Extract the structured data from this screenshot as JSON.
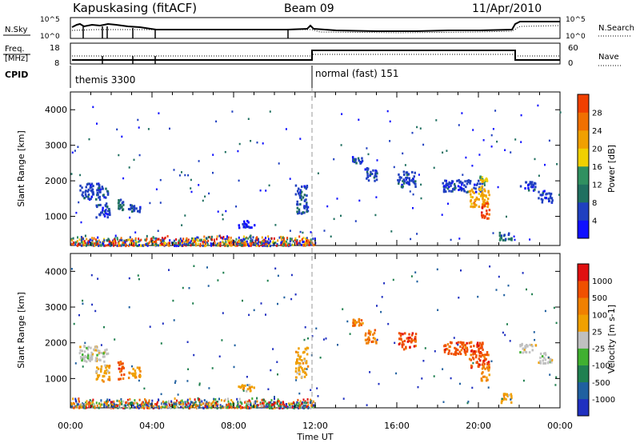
{
  "header": {
    "station": "Kapuskasing (fitACF)",
    "beam": "Beam 09",
    "date": "11/Apr/2010"
  },
  "status_panel": {
    "nsky_label": "N.Sky",
    "nsky_ticks": [
      "10^5",
      "10^0"
    ],
    "nsearch_label": "N.Search",
    "nsearch_ticks": [
      "10^5",
      "10^0"
    ],
    "freq_label_line1": "Freq.",
    "freq_label_line2": "[MHz]",
    "freq_ticks": [
      "18",
      "8"
    ],
    "nave_label": "Nave",
    "nave_ticks": [
      "60",
      "0"
    ],
    "cpid_label": "CPID",
    "cpid_segments": [
      {
        "name": "themis 3300",
        "start_hour": 0
      },
      {
        "name": "normal (fast) 151",
        "start_hour": 12
      }
    ]
  },
  "colors": {
    "power_scale": [
      "#1010ff",
      "#2040c0",
      "#207060",
      "#309060",
      "#f0d000",
      "#f0a000",
      "#f07000",
      "#f04000",
      "#e01010"
    ],
    "velocity_scale": [
      "#2030c0",
      "#2060a0",
      "#208050",
      "#40b030",
      "#c0c0c0",
      "#f0a000",
      "#f08000",
      "#f05000",
      "#e01010"
    ],
    "axis": "#000000",
    "midline": "#999999"
  },
  "chart_data": [
    {
      "type": "heatmap",
      "name": "Power",
      "ylabel": "Slant Range [km]",
      "ylim": [
        180,
        4500
      ],
      "yticks": [
        1000,
        2000,
        3000,
        4000
      ],
      "colorbar_label": "Power [dB]",
      "colorbar_ticks": [
        "4",
        "8",
        "12",
        "16",
        "20",
        "24",
        "28"
      ],
      "blobs": [
        {
          "x": [
            0.4,
            1.8
          ],
          "y": [
            1500,
            1950
          ],
          "level": 1
        },
        {
          "x": [
            1.2,
            1.9
          ],
          "y": [
            1000,
            1400
          ],
          "level": 1
        },
        {
          "x": [
            2.3,
            2.6
          ],
          "y": [
            1150,
            1500
          ],
          "level": 2
        },
        {
          "x": [
            2.8,
            3.4
          ],
          "y": [
            1150,
            1350
          ],
          "level": 1
        },
        {
          "x": [
            8.2,
            9.0
          ],
          "y": [
            700,
            900
          ],
          "level": 0
        },
        {
          "x": [
            11.0,
            11.6
          ],
          "y": [
            1100,
            1900
          ],
          "level": 1
        },
        {
          "x": [
            13.8,
            14.3
          ],
          "y": [
            2500,
            2700
          ],
          "level": 1
        },
        {
          "x": [
            14.4,
            15.0
          ],
          "y": [
            2000,
            2400
          ],
          "level": 1
        },
        {
          "x": [
            16.0,
            16.9
          ],
          "y": [
            1850,
            2300
          ],
          "level": 1
        },
        {
          "x": [
            18.2,
            20.2
          ],
          "y": [
            1700,
            2050
          ],
          "level": 1
        },
        {
          "x": [
            19.5,
            20.5
          ],
          "y": [
            1300,
            1800
          ],
          "level": 5
        },
        {
          "x": [
            20.0,
            20.4
          ],
          "y": [
            1700,
            2200
          ],
          "level": 4
        },
        {
          "x": [
            20.1,
            20.5
          ],
          "y": [
            950,
            1400
          ],
          "level": 7
        },
        {
          "x": [
            21.0,
            21.6
          ],
          "y": [
            350,
            600
          ],
          "level": 2
        },
        {
          "x": [
            22.0,
            22.8
          ],
          "y": [
            1750,
            2000
          ],
          "level": 1
        },
        {
          "x": [
            22.9,
            23.6
          ],
          "y": [
            1400,
            1750
          ],
          "level": 1
        }
      ],
      "near_range_band": {
        "x": [
          0.0,
          12.0
        ],
        "y": [
          200,
          500
        ]
      }
    },
    {
      "type": "heatmap",
      "name": "Velocity",
      "ylabel": "Slant Range [km]",
      "ylim": [
        180,
        4500
      ],
      "yticks": [
        1000,
        2000,
        3000,
        4000
      ],
      "xlabel": "Time UT",
      "xticks": [
        "00:00",
        "04:00",
        "08:00",
        "12:00",
        "16:00",
        "20:00",
        "00:00"
      ],
      "xlim_hours": [
        0,
        24
      ],
      "colorbar_label": "Velocity [m s-1]",
      "colorbar_ticks": [
        "1000",
        "500",
        "100",
        "25",
        "-25",
        "-100",
        "-500",
        "-1000"
      ],
      "blobs": [
        {
          "x": [
            0.4,
            1.8
          ],
          "y": [
            1500,
            1950
          ],
          "level": 4
        },
        {
          "x": [
            1.2,
            1.9
          ],
          "y": [
            950,
            1400
          ],
          "level": 5
        },
        {
          "x": [
            2.3,
            2.6
          ],
          "y": [
            1000,
            1500
          ],
          "level": 7
        },
        {
          "x": [
            2.8,
            3.4
          ],
          "y": [
            1050,
            1350
          ],
          "level": 5
        },
        {
          "x": [
            8.2,
            9.0
          ],
          "y": [
            650,
            850
          ],
          "level": 5
        },
        {
          "x": [
            11.0,
            11.6
          ],
          "y": [
            1050,
            1900
          ],
          "level": 5
        },
        {
          "x": [
            13.8,
            14.3
          ],
          "y": [
            2500,
            2700
          ],
          "level": 6
        },
        {
          "x": [
            14.4,
            15.0
          ],
          "y": [
            2000,
            2400
          ],
          "level": 6
        },
        {
          "x": [
            16.0,
            16.9
          ],
          "y": [
            1850,
            2300
          ],
          "level": 7
        },
        {
          "x": [
            18.2,
            20.2
          ],
          "y": [
            1700,
            2050
          ],
          "level": 7
        },
        {
          "x": [
            19.5,
            20.5
          ],
          "y": [
            1300,
            1800
          ],
          "level": 7
        },
        {
          "x": [
            20.1,
            20.5
          ],
          "y": [
            950,
            1400
          ],
          "level": 6
        },
        {
          "x": [
            21.0,
            21.6
          ],
          "y": [
            350,
            600
          ],
          "level": 5
        },
        {
          "x": [
            22.0,
            22.8
          ],
          "y": [
            1750,
            2000
          ],
          "level": 4
        },
        {
          "x": [
            22.9,
            23.6
          ],
          "y": [
            1450,
            1750
          ],
          "level": 4
        }
      ],
      "near_range_band": {
        "x": [
          0.0,
          12.0
        ],
        "y": [
          200,
          500
        ]
      }
    }
  ],
  "xaxis": {
    "label": "Time UT",
    "ticks": [
      "00:00",
      "04:00",
      "08:00",
      "12:00",
      "16:00",
      "20:00",
      "00:00"
    ]
  }
}
